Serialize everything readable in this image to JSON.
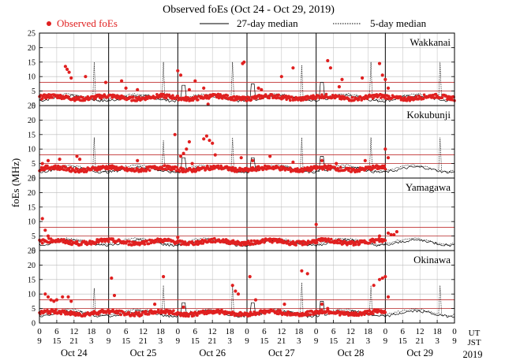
{
  "chart_data": {
    "type": "scatter",
    "title": "Observed foEs (Oct 24 - Oct 29, 2019)",
    "ylabel": "foEs (MHz)",
    "ylim": [
      0,
      25
    ],
    "yticks": [
      0,
      5,
      10,
      15,
      20,
      25
    ],
    "xlim_hours": [
      0,
      144
    ],
    "legend": {
      "observed": "Observed foEs",
      "median27": "27-day median",
      "median5": "5-day median"
    },
    "x_labels": {
      "ut_label": "UT",
      "jst_label": "JST",
      "ut_ticks": [
        "0",
        "6",
        "12",
        "18",
        "0",
        "6",
        "12",
        "18",
        "0",
        "6",
        "12",
        "18",
        "0",
        "6",
        "12",
        "18",
        "0",
        "6",
        "12",
        "18",
        "0",
        "6",
        "12",
        "18",
        "0"
      ],
      "jst_ticks": [
        "9",
        "15",
        "21",
        "3",
        "9",
        "15",
        "21",
        "3",
        "9",
        "15",
        "21",
        "3",
        "9",
        "15",
        "21",
        "3",
        "9",
        "15",
        "21",
        "3",
        "9",
        "15",
        "21",
        "3",
        "9"
      ],
      "dates": [
        "Oct 24",
        "Oct 25",
        "Oct 26",
        "Oct 27",
        "Oct 28",
        "Oct 29"
      ],
      "year": "2019"
    },
    "threshold_lines_mhz": [
      5,
      8
    ],
    "colors": {
      "observed": "#e02020",
      "threshold": "#c03030",
      "grid": "#bbbbbb",
      "median": "#000000"
    },
    "panels": [
      {
        "station": "Wakkanai",
        "base_level": 2.8,
        "dense_until_hour": 144,
        "spikes": [
          [
            9,
            13.5
          ],
          [
            9.6,
            12.5
          ],
          [
            10.3,
            11.5
          ],
          [
            11,
            9.5
          ],
          [
            16,
            10
          ],
          [
            23,
            8
          ],
          [
            28.5,
            8.5
          ],
          [
            30,
            6
          ],
          [
            34,
            5.5
          ],
          [
            48,
            12
          ],
          [
            49,
            10.5
          ],
          [
            52,
            5.5
          ],
          [
            54,
            8.5
          ],
          [
            57,
            6
          ],
          [
            58.5,
            0.5
          ],
          [
            70.5,
            14.5
          ],
          [
            71,
            15
          ],
          [
            76,
            6
          ],
          [
            77,
            5.5
          ],
          [
            84,
            10
          ],
          [
            88,
            13
          ],
          [
            100,
            15.5
          ],
          [
            101,
            13
          ],
          [
            104,
            6.5
          ],
          [
            105,
            9
          ],
          [
            112,
            9.5
          ],
          [
            118,
            14.5
          ],
          [
            119,
            10.5
          ],
          [
            120,
            9
          ],
          [
            121,
            6
          ]
        ],
        "median27_spikes": [
          [
            50,
            7
          ],
          [
            74,
            7.5
          ],
          [
            98,
            8
          ]
        ],
        "median5_spikes": [
          [
            19,
            15
          ],
          [
            43,
            15
          ],
          [
            67,
            15
          ],
          [
            91,
            14
          ],
          [
            115,
            15
          ],
          [
            139,
            15
          ]
        ]
      },
      {
        "station": "Kokubunji",
        "base_level": 3.2,
        "dense_until_hour": 120,
        "spikes": [
          [
            1,
            5
          ],
          [
            3,
            6
          ],
          [
            7,
            6.5
          ],
          [
            13,
            7.5
          ],
          [
            14,
            6.5
          ],
          [
            34,
            6
          ],
          [
            47,
            15
          ],
          [
            49,
            7.5
          ],
          [
            50,
            8.5
          ],
          [
            51,
            10
          ],
          [
            52,
            12.5
          ],
          [
            53,
            5
          ],
          [
            57,
            13.5
          ],
          [
            58,
            14.5
          ],
          [
            59,
            13
          ],
          [
            60,
            12
          ],
          [
            61,
            8
          ],
          [
            70,
            7
          ],
          [
            74,
            6
          ],
          [
            80,
            7.5
          ],
          [
            88,
            5.5
          ],
          [
            98,
            6
          ],
          [
            103,
            5
          ],
          [
            113,
            6
          ],
          [
            120,
            10
          ],
          [
            121,
            7
          ]
        ],
        "median27_spikes": [
          [
            50,
            7
          ],
          [
            74,
            7
          ],
          [
            98,
            7.5
          ]
        ],
        "median5_spikes": [
          [
            19,
            14
          ],
          [
            43,
            13
          ],
          [
            67,
            14
          ],
          [
            91,
            14
          ],
          [
            115,
            14
          ],
          [
            139,
            14
          ]
        ]
      },
      {
        "station": "Yamagawa",
        "base_level": 3.0,
        "dense_until_hour": 120,
        "spikes": [
          [
            1,
            11
          ],
          [
            2,
            7
          ],
          [
            3,
            5
          ],
          [
            48,
            4.5
          ],
          [
            80,
            4
          ],
          [
            96,
            9
          ],
          [
            118,
            5
          ],
          [
            121,
            6
          ],
          [
            122,
            5.5
          ],
          [
            123,
            5.5
          ],
          [
            124,
            6.5
          ]
        ],
        "median27_spikes": [],
        "median5_spikes": []
      },
      {
        "station": "Okinawa",
        "base_level": 3.5,
        "dense_until_hour": 120,
        "spikes": [
          [
            2,
            10
          ],
          [
            3,
            9
          ],
          [
            4,
            8
          ],
          [
            5,
            7.5
          ],
          [
            6,
            8
          ],
          [
            8,
            9
          ],
          [
            10,
            9
          ],
          [
            11,
            7.5
          ],
          [
            25,
            15.5
          ],
          [
            26,
            9.5
          ],
          [
            40,
            6.5
          ],
          [
            43,
            16
          ],
          [
            50,
            5.5
          ],
          [
            67,
            13
          ],
          [
            68,
            11
          ],
          [
            69,
            10
          ],
          [
            73,
            16
          ],
          [
            75,
            8
          ],
          [
            85,
            6.5
          ],
          [
            91,
            18
          ],
          [
            93,
            17
          ],
          [
            98,
            6.5
          ],
          [
            100,
            5
          ],
          [
            116,
            13
          ],
          [
            118,
            15
          ],
          [
            119,
            15.5
          ],
          [
            120,
            16
          ],
          [
            121,
            9
          ]
        ],
        "median27_spikes": [
          [
            50,
            7
          ],
          [
            74,
            7
          ],
          [
            98,
            7.5
          ]
        ],
        "median5_spikes": [
          [
            19,
            12
          ],
          [
            43,
            13
          ],
          [
            67,
            13
          ],
          [
            91,
            14
          ],
          [
            115,
            13
          ],
          [
            139,
            13
          ]
        ]
      }
    ]
  }
}
